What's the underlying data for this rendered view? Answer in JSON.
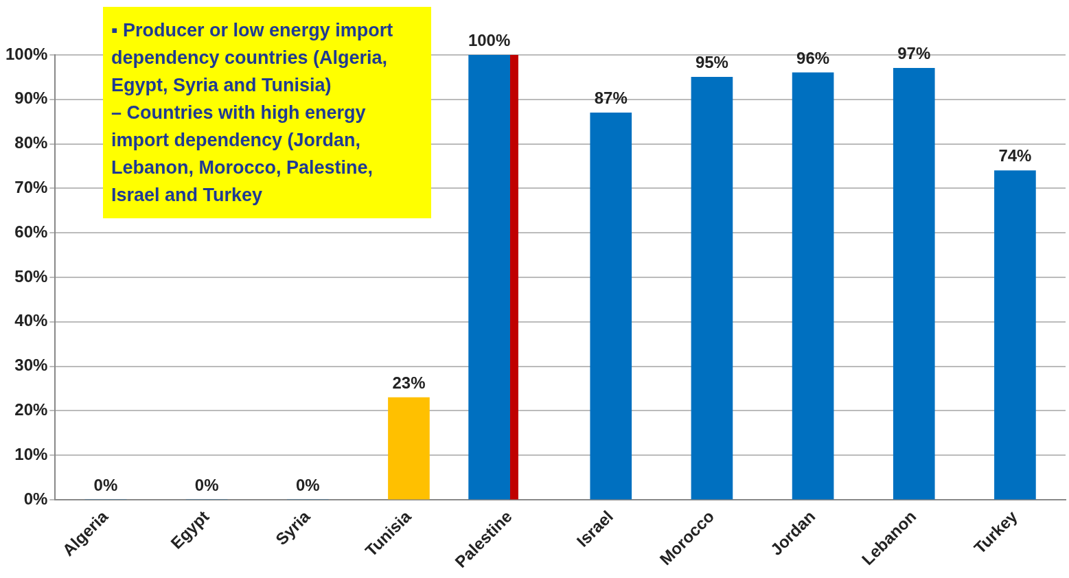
{
  "chart_data": {
    "type": "bar",
    "categories": [
      "Algeria",
      "Egypt",
      "Syria",
      "Tunisia",
      "Palestine",
      "Israel",
      "Morocco",
      "Jordan",
      "Lebanon",
      "Turkey"
    ],
    "series": [
      {
        "colors": [
          "#0070c0",
          "#0070c0",
          "#0070c0",
          "#ffc000",
          "#0070c0",
          "#0070c0",
          "#0070c0",
          "#0070c0",
          "#0070c0",
          "#0070c0"
        ],
        "values": [
          0,
          0,
          0,
          23,
          100,
          87,
          95,
          96,
          97,
          74
        ],
        "value_labels": [
          "0%",
          "0%",
          "0%",
          "23%",
          "100%",
          "87%",
          "95%",
          "96%",
          "97%",
          "74%"
        ]
      },
      {
        "color": "#c00000",
        "values": [
          null,
          null,
          null,
          null,
          100,
          null,
          null,
          null,
          null,
          null
        ]
      }
    ],
    "ylim": [
      0,
      100
    ],
    "yticks": [
      {
        "value": 0,
        "label": "0%"
      },
      {
        "value": 10,
        "label": "10%"
      },
      {
        "value": 20,
        "label": "20%"
      },
      {
        "value": 30,
        "label": "30%"
      },
      {
        "value": 40,
        "label": "40%"
      },
      {
        "value": 50,
        "label": "50%"
      },
      {
        "value": 60,
        "label": "60%"
      },
      {
        "value": 70,
        "label": "70%"
      },
      {
        "value": 80,
        "label": "80%"
      },
      {
        "value": 90,
        "label": "90%"
      },
      {
        "value": 100,
        "label": "100%"
      }
    ],
    "grid": "y",
    "legend": false,
    "annotations": [
      "▪ Producer or low energy import dependency countries (Algeria, Egypt, Syria and Tunisia)",
      "– Countries with high energy import dependency (Jordan, Lebanon, Morocco, Palestine, Israel and Turkey"
    ]
  }
}
